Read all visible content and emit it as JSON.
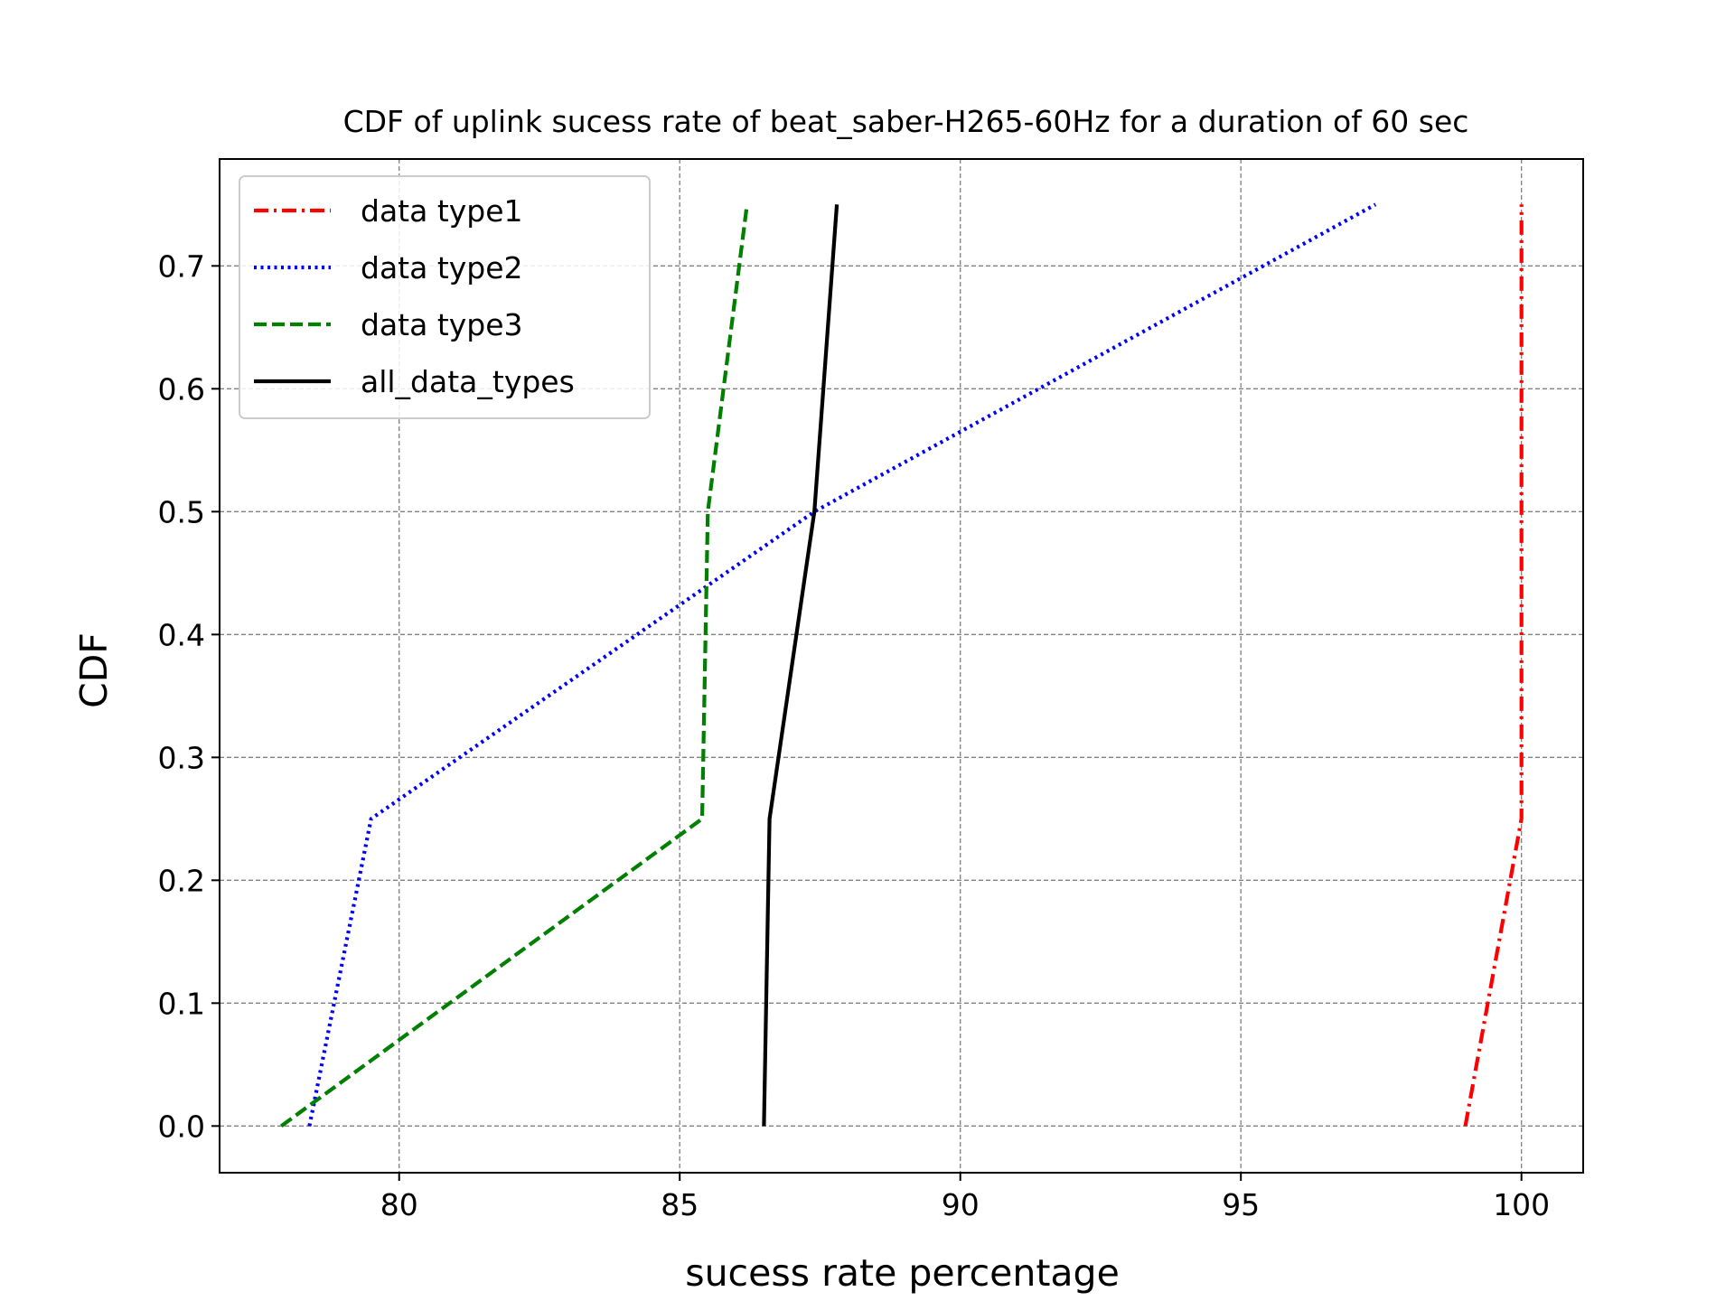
{
  "chart_data": {
    "type": "line",
    "title": "CDF of uplink sucess rate of beat_saber-H265-60Hz for a duration of 60 sec",
    "xlabel": "sucess rate percentage",
    "ylabel": "CDF",
    "xlim": [
      76.8,
      101.1
    ],
    "ylim": [
      -0.038,
      0.787
    ],
    "xticks": [
      80,
      85,
      90,
      95,
      100
    ],
    "yticks": [
      0.0,
      0.1,
      0.2,
      0.3,
      0.4,
      0.5,
      0.6,
      0.7
    ],
    "xtick_labels": [
      "80",
      "85",
      "90",
      "95",
      "100"
    ],
    "ytick_labels": [
      "0.0",
      "0.1",
      "0.2",
      "0.3",
      "0.4",
      "0.5",
      "0.6",
      "0.7"
    ],
    "grid": true,
    "legend_position": "upper-left",
    "series": [
      {
        "name": "data type1",
        "color": "#ff0000",
        "style": "dash-dot",
        "x": [
          99.0,
          100.0,
          100.0,
          100.0
        ],
        "y": [
          0.0,
          0.25,
          0.5,
          0.75
        ]
      },
      {
        "name": "data type2",
        "color": "#0000ff",
        "style": "dotted",
        "x": [
          78.4,
          79.5,
          87.4,
          97.4
        ],
        "y": [
          0.0,
          0.25,
          0.5,
          0.75
        ]
      },
      {
        "name": "data type3",
        "color": "#008000",
        "style": "dashed",
        "x": [
          77.9,
          85.4,
          85.5,
          86.2
        ],
        "y": [
          0.0,
          0.25,
          0.5,
          0.75
        ]
      },
      {
        "name": "all_data_types",
        "color": "#000000",
        "style": "solid",
        "x": [
          86.5,
          86.6,
          87.4,
          87.8
        ],
        "y": [
          0.0,
          0.25,
          0.5,
          0.75
        ]
      }
    ]
  }
}
